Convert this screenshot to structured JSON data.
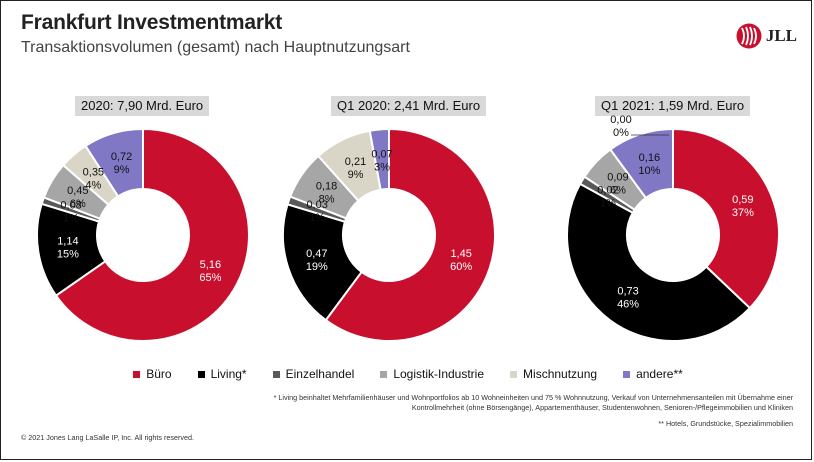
{
  "header": {
    "title": "Frankfurt Investmentmarkt",
    "subtitle": "Transaktionsvolumen (gesamt) nach Hauptnutzungsart",
    "logo_text": "JLL"
  },
  "colors": {
    "Büro": "#c8102e",
    "Living*": "#000000",
    "Einzelhandel": "#595959",
    "Logistik-Industrie": "#a6a6a6",
    "Mischnutzung": "#d9d5c7",
    "andere**": "#8078c5"
  },
  "chart_data": [
    {
      "type": "pie",
      "title": "2020: 7,90 Mrd. Euro",
      "categories": [
        "Büro",
        "Living*",
        "Einzelhandel",
        "Logistik-Industrie",
        "Mischnutzung",
        "andere**"
      ],
      "values": [
        5.16,
        1.14,
        0.08,
        0.45,
        0.35,
        0.72
      ],
      "value_labels": [
        "5,16",
        "1,14",
        "0,08",
        "0,45",
        "0,35",
        "0,72"
      ],
      "percent_labels": [
        "65%",
        "15%",
        "1%",
        "6%",
        "4%",
        "9%"
      ]
    },
    {
      "type": "pie",
      "title": "Q1 2020: 2,41 Mrd. Euro",
      "categories": [
        "Büro",
        "Living*",
        "Einzelhandel",
        "Logistik-Industrie",
        "Mischnutzung",
        "andere**"
      ],
      "values": [
        1.45,
        0.47,
        0.03,
        0.18,
        0.21,
        0.07
      ],
      "value_labels": [
        "1,45",
        "0,47",
        "0,03",
        "0,18",
        "0,21",
        "0,07"
      ],
      "percent_labels": [
        "60%",
        "19%",
        "1%",
        "8%",
        "9%",
        "3%"
      ]
    },
    {
      "type": "pie",
      "title": "Q1 2021: 1,59 Mrd. Euro",
      "categories": [
        "Büro",
        "Living*",
        "Einzelhandel",
        "Logistik-Industrie",
        "Mischnutzung",
        "andere**"
      ],
      "values": [
        0.59,
        0.73,
        0.02,
        0.09,
        0.0,
        0.16
      ],
      "value_labels": [
        "0,59",
        "0,73",
        "0,02",
        "0,09",
        "0,00",
        "0,16"
      ],
      "percent_labels": [
        "37%",
        "46%",
        "1%",
        "6%",
        "0%",
        "10%"
      ]
    }
  ],
  "legend": [
    "Büro",
    "Living*",
    "Einzelhandel",
    "Logistik-Industrie",
    "Mischnutzung",
    "andere**"
  ],
  "footnotes": {
    "living": "* Living beinhaltet Mehrfamilienhäuser und Wohnportfolios ab 10 Wohneinheiten und 75 % Wohnnutzung, Verkauf von Unternehmensanteilen mit Übernahme einer Kontrollmehrheit (ohne Börsengänge), Appartementhäuser, Studentenwohnen, Senioren-/Pflegeimmobilien und Kliniken",
    "andere": "** Hotels, Grundstücke, Spezialimmobilien"
  },
  "copyright": "© 2021 Jones Lang LaSalle IP, Inc. All rights reserved."
}
